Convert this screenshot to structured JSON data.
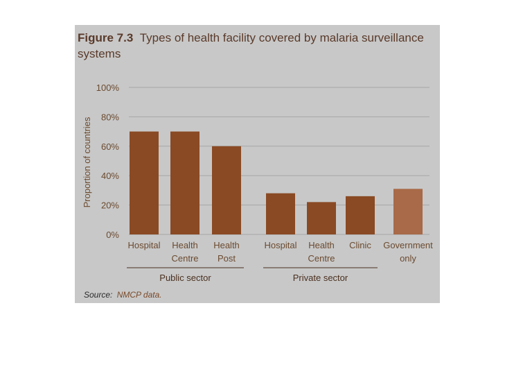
{
  "figure": {
    "title_prefix": "Figure 7.3",
    "title_rest": "Types of health facility covered by malaria surveillance",
    "title_line2": "systems",
    "source_label": "Source:",
    "source_text": "NMCP data."
  },
  "colors": {
    "background": "#c8c8c8",
    "bar": "#8a4a24",
    "bar_government": "#a86a48",
    "grid": "#a6a6a6",
    "text": "#6b4a2f",
    "source_text": "#7a4a2a"
  },
  "chart_data": {
    "type": "bar",
    "ylabel": "Proportion of countries",
    "ylim": [
      0,
      100
    ],
    "yticks": [
      "0%",
      "20%",
      "40%",
      "60%",
      "80%",
      "100%"
    ],
    "grid": true,
    "categories": [
      [
        "Hospital"
      ],
      [
        "Health",
        "Centre"
      ],
      [
        "Health",
        "Post"
      ],
      [
        "Hospital"
      ],
      [
        "Health",
        "Centre"
      ],
      [
        "Clinic"
      ],
      [
        "Government",
        "only"
      ]
    ],
    "values": [
      70,
      70,
      60,
      28,
      22,
      26,
      31
    ],
    "groups": [
      {
        "label": "Public sector",
        "members": [
          0,
          1,
          2
        ]
      },
      {
        "label": "Private sector",
        "members": [
          3,
          4,
          5
        ]
      }
    ]
  }
}
